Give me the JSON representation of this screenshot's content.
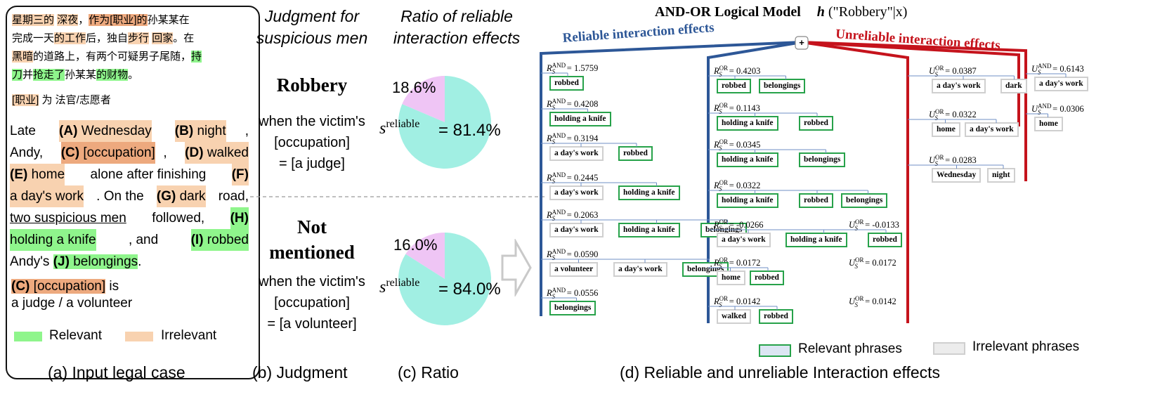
{
  "panel_a": {
    "zh_lines": [
      [
        "星期三的",
        " ",
        "深夜",
        "，",
        "作为[职业]的",
        "孙某某在"
      ],
      [
        "完成一天",
        "的工作",
        "后，独自",
        "步行",
        " ",
        "回家",
        "。在"
      ],
      [
        "黑暗",
        "的道路上，有两个可疑男子尾随，",
        "持"
      ],
      [
        "刀",
        "并",
        "抢走了",
        "孙某某",
        "的财物",
        "。"
      ]
    ],
    "zh_role": [
      "[职业]",
      " 为 法官/志愿者"
    ],
    "en": {
      "l1": [
        "Late ",
        "(A)",
        " Wednesday",
        " ",
        "(B)",
        " night",
        ","
      ],
      "l2": [
        "Andy, ",
        "(C)",
        " [occupation]",
        ", ",
        "(D)",
        " walked"
      ],
      "l3": [
        "(E)",
        " home",
        " alone after finishing ",
        "(F)"
      ],
      "l4": [
        "a day's work",
        ". On the ",
        "(G)",
        " dark",
        " road,"
      ],
      "l5": [
        "two suspicious men",
        " followed, ",
        "(H)"
      ],
      "l6": [
        "holding a knife",
        ", and ",
        "(I)",
        " robbed"
      ],
      "l7": [
        "Andy's ",
        "(J)",
        " belongings",
        "."
      ]
    },
    "role": {
      "c": "(C)",
      "occ": " [occupation]",
      "is": " is",
      "line2": "a judge / a volunteer"
    },
    "legend": {
      "relevant": "Relevant",
      "irrelevant": "Irrelevant",
      "relevant_color": "#8ff58c",
      "irrelevant_color": "#f8d2b0"
    }
  },
  "panel_b": {
    "header": [
      "Judgment for",
      "suspicious men"
    ],
    "top": {
      "verdict": "Robbery",
      "when": "when the victim's",
      "occ": "[occupation]",
      "eq": "= [a judge]"
    },
    "bottom": {
      "verdict_l1": "Not",
      "verdict_l2": "mentioned",
      "when": "when the victim's",
      "occ": "[occupation]",
      "eq": "= [a volunteer]"
    }
  },
  "panel_c": {
    "header": [
      "Ratio of reliable",
      "interaction effects"
    ],
    "s_label": "s",
    "s_sup": "reliable",
    "charts_note": "see chart_data"
  },
  "chart_data": [
    {
      "type": "pie",
      "title": "Robbery",
      "labels": [
        "reliable",
        "unreliable"
      ],
      "values": [
        81.4,
        18.6
      ],
      "colors": [
        "#a1efe3",
        "#efc5f5"
      ],
      "value_label": "= 81.4%",
      "small_label": "18.6%"
    },
    {
      "type": "pie",
      "title": "Not mentioned",
      "labels": [
        "reliable",
        "unreliable"
      ],
      "values": [
        84.0,
        16.0
      ],
      "colors": [
        "#a1efe3",
        "#efc5f5"
      ],
      "value_label": "= 84.0%",
      "small_label": "16.0%"
    }
  ],
  "panel_d": {
    "title": "AND-OR Logical Model",
    "title_h": "h",
    "title_arg": "(\"Robbery\"|x)",
    "reliable_label": "Reliable interaction effects",
    "unreliable_label": "Unreliable interaction effects",
    "root": "+",
    "colors": {
      "reliable": "#2d5797",
      "unreliable": "#c5131c",
      "relevant_border": "#27a24a",
      "irrelevant_border": "#cfcfcf"
    },
    "col1": [
      {
        "label": "R",
        "sup": "AND",
        "val": "= 1.5759",
        "tags": [
          [
            "robbed",
            "rel"
          ]
        ]
      },
      {
        "label": "R",
        "sup": "AND",
        "val": "= 0.4208",
        "tags": [
          [
            "holding a knife",
            "rel"
          ]
        ]
      },
      {
        "label": "R",
        "sup": "AND",
        "val": "= 0.3194",
        "tags": [
          [
            "a day's work",
            "irr"
          ],
          [
            "robbed",
            "rel"
          ]
        ]
      },
      {
        "label": "R",
        "sup": "AND",
        "val": "= 0.2445",
        "tags": [
          [
            "a day's work",
            "irr"
          ],
          [
            "holding a knife",
            "rel"
          ]
        ]
      },
      {
        "label": "R",
        "sup": "AND",
        "val": "= 0.2063",
        "tags": [
          [
            "a day's work",
            "irr"
          ],
          [
            "holding a knife",
            "rel"
          ],
          [
            "belongings",
            "rel"
          ]
        ]
      },
      {
        "label": "R",
        "sup": "AND",
        "val": "= 0.0590",
        "tags": [
          [
            "a volunteer",
            "irr"
          ],
          [
            "a day's work",
            "irr"
          ],
          [
            "belongings",
            "rel"
          ]
        ]
      },
      {
        "label": "R",
        "sup": "AND",
        "val": "= 0.0556",
        "tags": [
          [
            "belongings",
            "rel"
          ]
        ]
      }
    ],
    "col2": [
      {
        "label": "R",
        "sup": "OR",
        "val": "= 0.4203",
        "tags": [
          [
            "robbed",
            "rel"
          ],
          [
            "belongings",
            "rel"
          ]
        ]
      },
      {
        "label": "R",
        "sup": "OR",
        "val": "= 0.1143",
        "tags": [
          [
            "holding a knife",
            "rel"
          ],
          [
            "robbed",
            "rel"
          ]
        ]
      },
      {
        "label": "R",
        "sup": "OR",
        "val": "= 0.0345",
        "tags": [
          [
            "holding a knife",
            "rel"
          ],
          [
            "belongings",
            "rel"
          ]
        ]
      },
      {
        "label": "R",
        "sup": "OR",
        "val": "= 0.0322",
        "tags": [
          [
            "holding a knife",
            "rel"
          ],
          [
            "robbed",
            "rel"
          ],
          [
            "belongings",
            "rel"
          ]
        ]
      },
      {
        "label": "R",
        "sup": "OR",
        "val": "= -0.0266",
        "u": "U",
        "usup": "OR",
        "uval": "= -0.0133",
        "tags": [
          [
            "a day's work",
            "irr"
          ],
          [
            "holding a knife",
            "rel"
          ],
          [
            "robbed",
            "rel"
          ]
        ]
      },
      {
        "label": "R",
        "sup": "OR",
        "val": "= 0.0172",
        "u": "U",
        "usup": "OR",
        "uval": "= 0.0172",
        "tags": [
          [
            "home",
            "irr"
          ],
          [
            "robbed",
            "rel"
          ]
        ]
      },
      {
        "label": "R",
        "sup": "OR",
        "val": "= 0.0142",
        "u": "U",
        "usup": "OR",
        "uval": "= 0.0142",
        "tags": [
          [
            "walked",
            "irr"
          ],
          [
            "robbed",
            "rel"
          ]
        ]
      }
    ],
    "col3": [
      {
        "label": "U",
        "sup": "OR",
        "val": "= 0.0387",
        "tags": [
          [
            "a day's work",
            "irr"
          ],
          [
            "dark",
            "irr"
          ]
        ]
      },
      {
        "label": "U",
        "sup": "OR",
        "val": "= 0.0322",
        "tags": [
          [
            "home",
            "irr"
          ],
          [
            "a day's work",
            "irr"
          ]
        ]
      },
      {
        "label": "U",
        "sup": "OR",
        "val": "= 0.0283",
        "tags": [
          [
            "Wednesday",
            "irr"
          ],
          [
            "night",
            "irr"
          ]
        ]
      }
    ],
    "col4": [
      {
        "label": "U",
        "sup": "AND",
        "val": "= 0.6143",
        "tags": [
          [
            "a day's work",
            "irr"
          ]
        ]
      },
      {
        "label": "U",
        "sup": "AND",
        "val": "= 0.0306",
        "tags": [
          [
            "home",
            "irr"
          ]
        ]
      }
    ],
    "legend": {
      "relevant": "Relevant phrases",
      "irrelevant": "Irrelevant phrases"
    }
  },
  "captions": {
    "a": "(a) Input legal case",
    "b": "(b) Judgment",
    "c": "(c) Ratio",
    "d": "(d) Reliable and unreliable Interaction effects"
  }
}
